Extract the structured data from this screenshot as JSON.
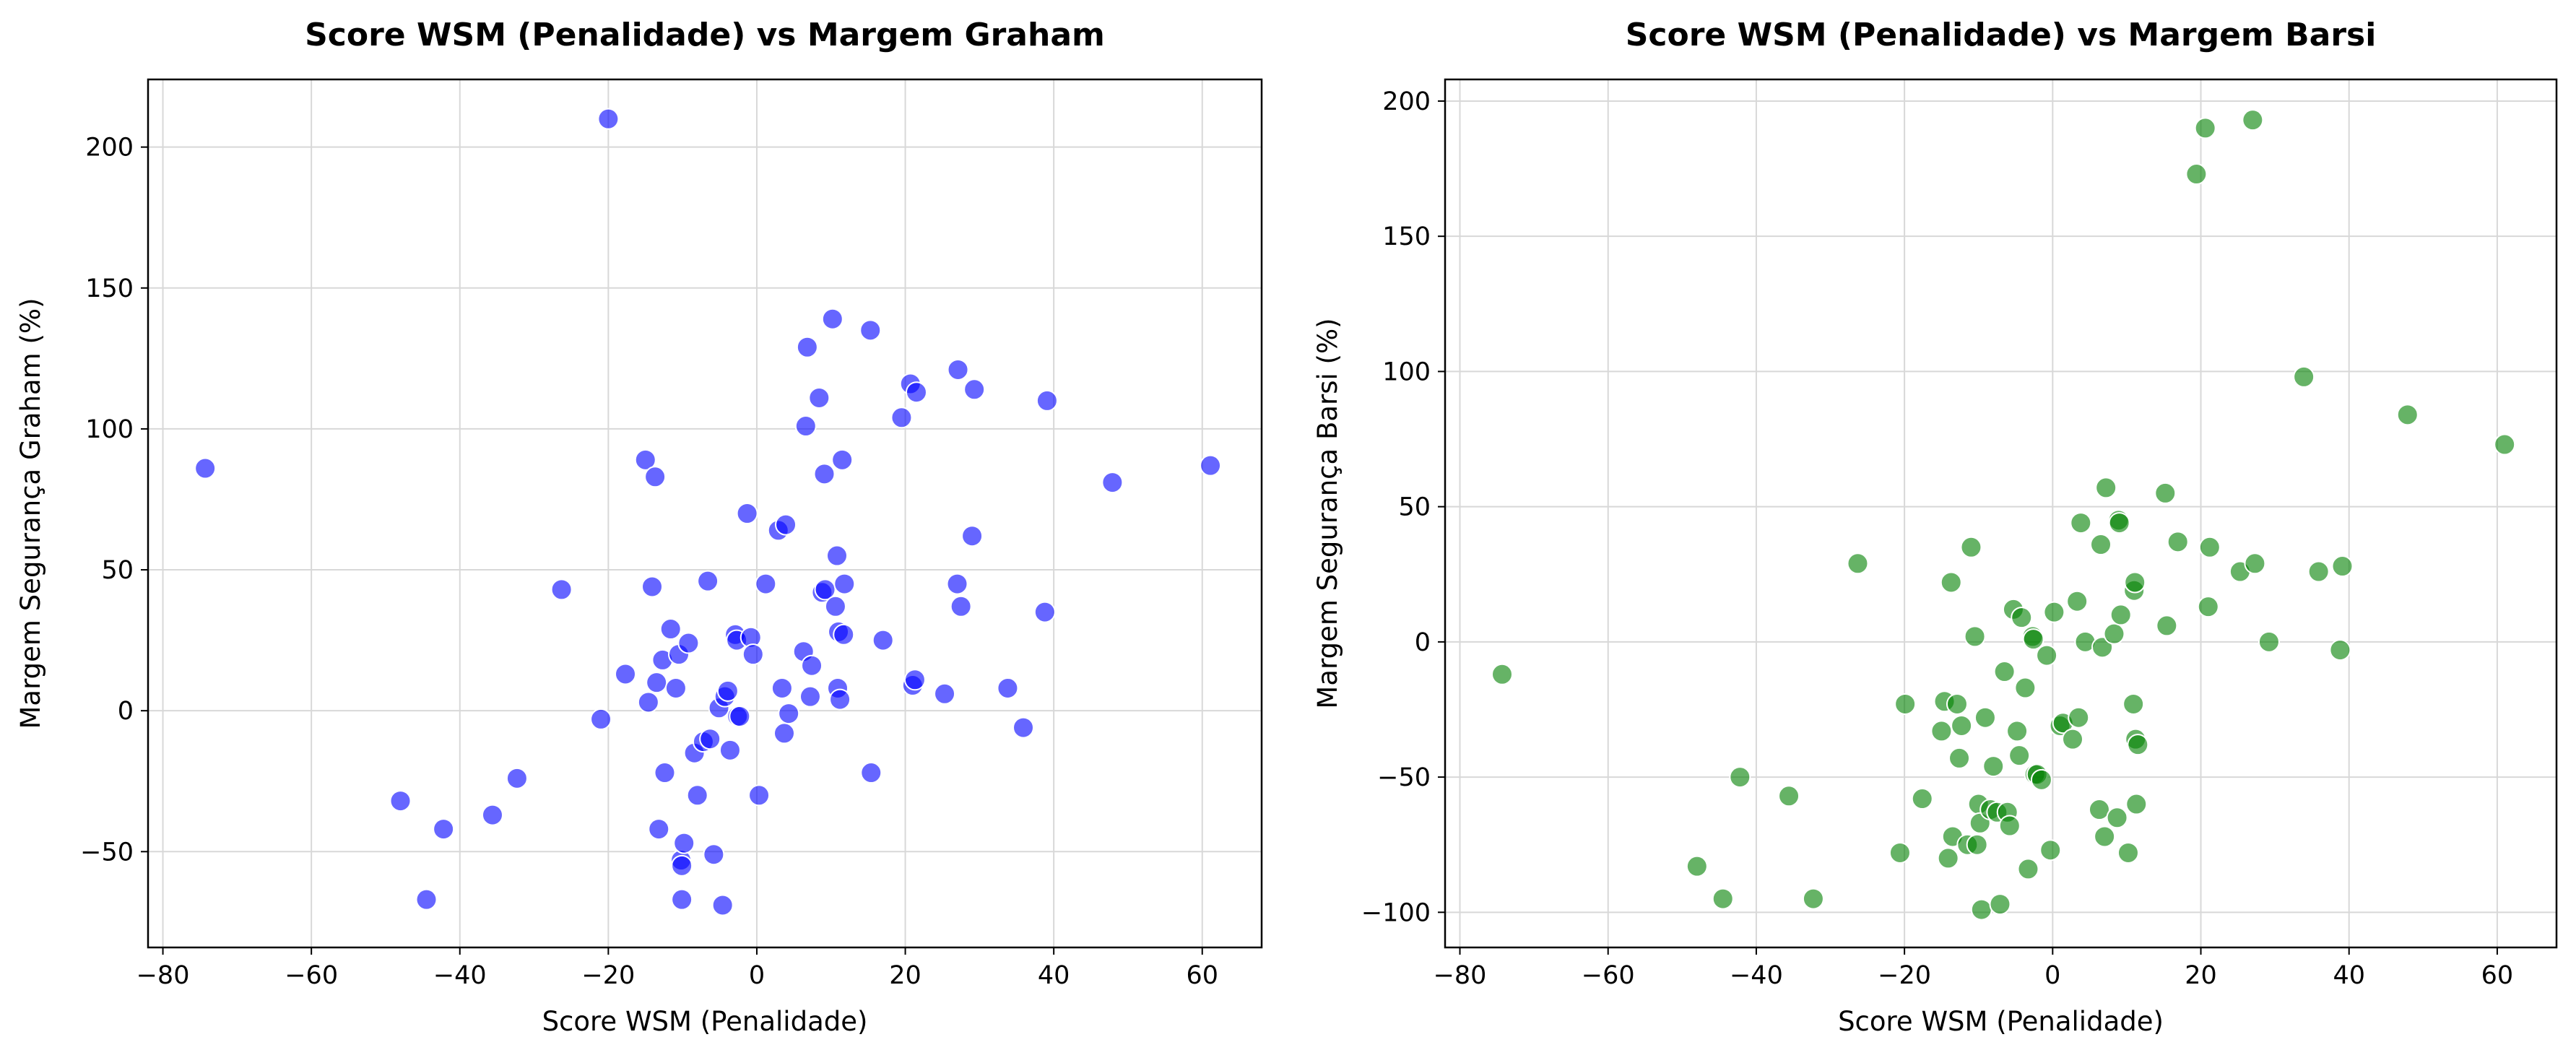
{
  "chart_data": [
    {
      "type": "scatter",
      "title": "Score WSM (Penalidade) vs Margem Graham",
      "xlabel": "Score WSM (Penalidade)",
      "ylabel": "Margem Segurança Graham (%)",
      "xlim": [
        -82,
        68
      ],
      "ylim": [
        -84,
        224
      ],
      "xticks": [
        -80,
        -60,
        -40,
        -20,
        0,
        20,
        40,
        60
      ],
      "yticks": [
        -50,
        0,
        50,
        100,
        150,
        200
      ],
      "grid": true,
      "color": "#0000ff",
      "series": [
        {
          "x": [
            -74.3,
            -48.0,
            -44.5,
            -42.2,
            -35.6,
            -32.3,
            -26.3,
            -21.0,
            -20.0,
            -17.7,
            -15.0,
            -14.6,
            -14.1,
            -13.7,
            -13.5,
            -13.2,
            -12.7,
            -12.4,
            -11.6,
            -10.9,
            -10.5,
            -10.2,
            -10.1,
            -10.1,
            -9.8,
            -9.2,
            -8.4,
            -8.0,
            -7.2,
            -6.6,
            -6.3,
            -5.8,
            -5.1,
            -4.6,
            -4.3,
            -3.9,
            -3.6,
            -2.9,
            -2.7,
            -2.6,
            -2.3,
            -1.3,
            -0.8,
            -0.5,
            0.3,
            1.2,
            2.9,
            3.4,
            3.7,
            3.9,
            4.3,
            6.3,
            6.6,
            6.8,
            7.2,
            7.4,
            8.4,
            8.8,
            9.1,
            9.2,
            10.2,
            10.6,
            10.8,
            10.9,
            11.0,
            11.2,
            11.5,
            11.7,
            11.8,
            15.3,
            15.4,
            17.0,
            19.5,
            20.7,
            21.0,
            21.3,
            21.5,
            25.3,
            27.0,
            27.1,
            27.5,
            29.0,
            29.3,
            33.8,
            35.9,
            38.8,
            39.1,
            47.9,
            61.1
          ],
          "y": [
            86,
            -32,
            -67,
            -42,
            -37,
            -24,
            43,
            -3,
            210,
            13,
            89,
            3,
            44,
            83,
            10,
            -42,
            18,
            -22,
            29,
            8,
            20,
            -53,
            -55,
            -67,
            -47,
            24,
            -15,
            -30,
            -11,
            46,
            -10,
            -51,
            1,
            -69,
            5,
            7,
            -14,
            27,
            25,
            -2,
            -2,
            70,
            26,
            20,
            -30,
            45,
            64,
            8,
            -8,
            66,
            -1,
            21,
            101,
            129,
            5,
            16,
            111,
            42,
            84,
            43,
            139,
            37,
            55,
            8,
            28,
            4,
            89,
            27,
            45,
            135,
            -22,
            25,
            104,
            116,
            9,
            11,
            113,
            6,
            45,
            121,
            37,
            62,
            114,
            8,
            -6,
            35,
            110,
            81,
            87
          ]
        }
      ]
    },
    {
      "type": "scatter",
      "title": "Score WSM (Penalidade) vs Margem Barsi",
      "xlabel": "Score WSM (Penalidade)",
      "ylabel": "Margem Segurança Barsi (%)",
      "xlim": [
        -82,
        68
      ],
      "ylim": [
        -113,
        208
      ],
      "xticks": [
        -80,
        -60,
        -40,
        -20,
        0,
        20,
        40,
        60
      ],
      "yticks": [
        -100,
        -50,
        0,
        50,
        100,
        150,
        200
      ],
      "grid": true,
      "color": "#008000",
      "series": [
        {
          "x": [
            -74.3,
            -48.0,
            -44.5,
            -42.2,
            -35.6,
            -32.3,
            -26.3,
            -20.6,
            -19.9,
            -17.6,
            -15.0,
            -14.6,
            -14.1,
            -13.7,
            -13.5,
            -12.9,
            -12.6,
            -12.3,
            -11.5,
            -11.0,
            -10.5,
            -10.2,
            -10.0,
            -9.8,
            -9.6,
            -9.1,
            -8.4,
            -8.0,
            -7.5,
            -7.1,
            -6.5,
            -6.1,
            -5.8,
            -5.3,
            -4.8,
            -4.5,
            -4.2,
            -3.7,
            -3.3,
            -2.7,
            -2.6,
            -2.4,
            -2.1,
            -1.5,
            -0.8,
            -0.3,
            0.2,
            1.0,
            1.4,
            2.7,
            3.3,
            3.5,
            3.8,
            4.4,
            6.3,
            6.5,
            6.7,
            7.0,
            7.2,
            8.3,
            8.7,
            8.9,
            9.0,
            9.2,
            10.2,
            10.9,
            11.0,
            11.1,
            11.2,
            11.3,
            11.5,
            15.2,
            15.4,
            16.9,
            19.4,
            20.6,
            21.0,
            21.2,
            25.3,
            27.0,
            27.3,
            29.2,
            33.9,
            35.9,
            38.8,
            39.1,
            47.9,
            61.0
          ],
          "y": [
            -12,
            -83,
            -95,
            -50,
            -57,
            -95,
            29,
            -78,
            -23,
            -58,
            -33,
            -22,
            -80,
            22,
            -72,
            -23,
            -43,
            -31,
            -75,
            35,
            2,
            -75,
            -60,
            -67,
            -99,
            -28,
            -62,
            -46,
            -63,
            -97,
            -11,
            -63,
            -68,
            12,
            -33,
            -42,
            9,
            -17,
            -84,
            2,
            1,
            -49,
            -49,
            -51,
            -5,
            -77,
            11,
            -31,
            -30,
            -36,
            15,
            -28,
            44,
            0,
            -62,
            36,
            -2,
            -72,
            57,
            3,
            -65,
            45,
            44,
            10,
            -78,
            -23,
            19,
            22,
            -36,
            -60,
            -38,
            55,
            6,
            37,
            173,
            190,
            13,
            35,
            26,
            193,
            29,
            0,
            98,
            26,
            -3,
            28,
            84,
            73
          ]
        }
      ]
    }
  ]
}
